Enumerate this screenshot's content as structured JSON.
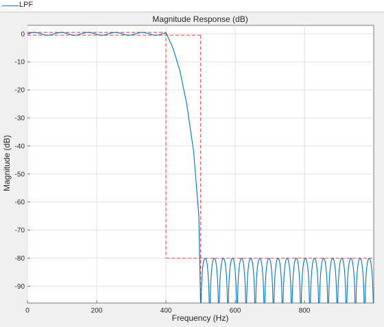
{
  "legend": {
    "label": "LPF"
  },
  "chart_data": {
    "type": "line",
    "title": "Magnitude Response (dB)",
    "xlabel": "Frequency (Hz)",
    "ylabel": "Magnitude (dB)",
    "xlim": [
      0,
      1000
    ],
    "ylim": [
      -96,
      3
    ],
    "xticks": [
      0,
      200,
      400,
      600,
      800
    ],
    "yticks": [
      0,
      -10,
      -20,
      -30,
      -40,
      -50,
      -60,
      -70,
      -80,
      -90
    ],
    "grid": true,
    "colors": {
      "series": "#0072bd",
      "mask": "#ff5555"
    },
    "series": [
      {
        "name": "LPF",
        "passband": {
          "f_end": 400,
          "ripple_db": 0.5,
          "ripple_period_hz": 78
        },
        "transition": {
          "x": [
            400,
            420,
            440,
            460,
            480,
            495,
            500
          ],
          "y": [
            0,
            -5,
            -13,
            -25,
            -42,
            -65,
            -96
          ]
        },
        "stopband": {
          "f_start": 500,
          "f_end": 1000,
          "floor_db": -80,
          "lobes": 19
        }
      }
    ],
    "mask": {
      "passband_upper": {
        "x": [
          0,
          400
        ],
        "y": [
          0.5,
          0.5
        ]
      },
      "passband_lower": {
        "x": [
          0,
          500
        ],
        "y": [
          -0.5,
          -0.5
        ]
      },
      "transition_edges": [
        400,
        500
      ],
      "stopband_limit": {
        "x": [
          400,
          1000
        ],
        "y": [
          -80,
          -80
        ]
      }
    }
  }
}
